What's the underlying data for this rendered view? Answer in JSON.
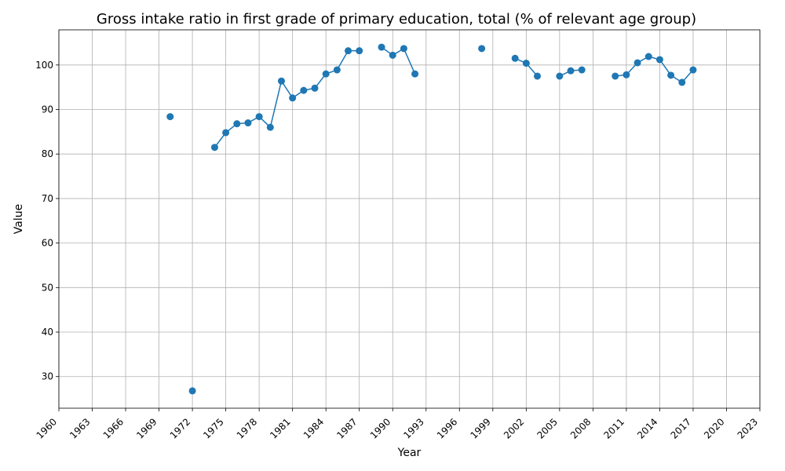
{
  "chart_data": {
    "type": "line",
    "title": "Gross intake ratio in first grade of primary education, total (% of relevant age group)",
    "xlabel": "Year",
    "ylabel": "Value",
    "xlim": [
      1960,
      2023
    ],
    "ylim": [
      22.9,
      107.9
    ],
    "x_ticks": [
      1960,
      1963,
      1966,
      1969,
      1972,
      1975,
      1978,
      1981,
      1984,
      1987,
      1990,
      1993,
      1996,
      1999,
      2002,
      2005,
      2008,
      2011,
      2014,
      2017,
      2020,
      2023
    ],
    "y_ticks": [
      30,
      40,
      50,
      60,
      70,
      80,
      90,
      100
    ],
    "grid": true,
    "legend": "none",
    "series": [
      {
        "color": "#1f77b4",
        "marker": "circle",
        "points": [
          [
            1970,
            88.4
          ],
          [
            1971,
            null
          ],
          [
            1972,
            26.8
          ],
          [
            1973,
            null
          ],
          [
            1974,
            81.5
          ],
          [
            1975,
            84.8
          ],
          [
            1976,
            86.8
          ],
          [
            1977,
            87.0
          ],
          [
            1978,
            88.4
          ],
          [
            1979,
            86.0
          ],
          [
            1980,
            96.4
          ],
          [
            1981,
            92.6
          ],
          [
            1982,
            94.3
          ],
          [
            1983,
            94.8
          ],
          [
            1984,
            98.0
          ],
          [
            1985,
            98.9
          ],
          [
            1986,
            103.2
          ],
          [
            1987,
            103.2
          ],
          [
            1988,
            null
          ],
          [
            1989,
            104.0
          ],
          [
            1990,
            102.2
          ],
          [
            1991,
            103.7
          ],
          [
            1992,
            98.0
          ],
          [
            1993,
            null
          ],
          [
            1994,
            null
          ],
          [
            1995,
            null
          ],
          [
            1996,
            null
          ],
          [
            1997,
            null
          ],
          [
            1998,
            103.7
          ],
          [
            1999,
            null
          ],
          [
            2000,
            null
          ],
          [
            2001,
            101.5
          ],
          [
            2002,
            100.4
          ],
          [
            2003,
            97.5
          ],
          [
            2004,
            null
          ],
          [
            2005,
            97.5
          ],
          [
            2006,
            98.7
          ],
          [
            2007,
            98.9
          ],
          [
            2008,
            null
          ],
          [
            2009,
            null
          ],
          [
            2010,
            97.5
          ],
          [
            2011,
            97.8
          ],
          [
            2012,
            100.5
          ],
          [
            2013,
            101.9
          ],
          [
            2014,
            101.2
          ],
          [
            2015,
            97.7
          ],
          [
            2016,
            96.1
          ],
          [
            2017,
            98.9
          ]
        ]
      }
    ]
  }
}
